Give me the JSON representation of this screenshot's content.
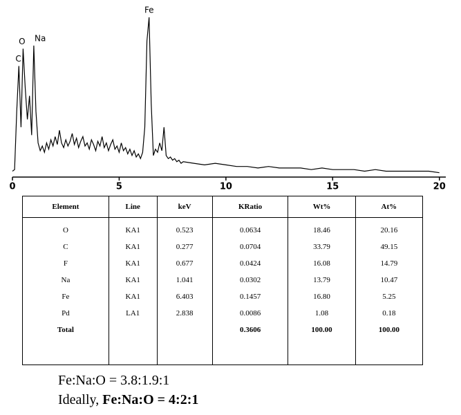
{
  "chart_data": {
    "type": "line",
    "x": [
      0.0,
      0.1,
      0.2,
      0.3,
      0.4,
      0.5,
      0.6,
      0.7,
      0.8,
      0.9,
      1.0,
      1.1,
      1.2,
      1.3,
      1.4,
      1.5,
      1.6,
      1.7,
      1.8,
      1.9,
      2.0,
      2.1,
      2.2,
      2.3,
      2.4,
      2.5,
      2.6,
      2.7,
      2.8,
      2.9,
      3.0,
      3.1,
      3.2,
      3.3,
      3.4,
      3.5,
      3.6,
      3.7,
      3.8,
      3.9,
      4.0,
      4.1,
      4.2,
      4.3,
      4.4,
      4.5,
      4.6,
      4.7,
      4.8,
      4.9,
      5.0,
      5.1,
      5.2,
      5.3,
      5.4,
      5.5,
      5.6,
      5.7,
      5.8,
      5.9,
      6.0,
      6.1,
      6.2,
      6.3,
      6.4,
      6.5,
      6.6,
      6.7,
      6.8,
      6.9,
      7.0,
      7.1,
      7.2,
      7.3,
      7.4,
      7.5,
      7.6,
      7.7,
      7.8,
      7.9,
      8.0,
      8.5,
      9.0,
      9.5,
      10.0,
      10.5,
      11.0,
      11.5,
      12.0,
      12.5,
      13.0,
      13.5,
      14.0,
      14.5,
      15.0,
      15.5,
      16.0,
      16.5,
      17.0,
      17.5,
      18.0,
      18.5,
      19.0,
      19.5,
      20.0
    ],
    "series": [
      {
        "color": "#000000",
        "values": [
          2,
          3,
          40,
          69,
          30,
          80,
          55,
          35,
          50,
          25,
          82,
          40,
          20,
          15,
          18,
          14,
          20,
          16,
          22,
          18,
          24,
          19,
          28,
          20,
          17,
          22,
          18,
          21,
          26,
          19,
          23,
          17,
          21,
          24,
          18,
          20,
          16,
          22,
          19,
          15,
          21,
          18,
          24,
          17,
          20,
          15,
          19,
          22,
          16,
          18,
          14,
          20,
          15,
          17,
          13,
          16,
          12,
          15,
          11,
          13,
          10,
          14,
          30,
          85,
          100,
          45,
          12,
          16,
          14,
          20,
          15,
          30,
          12,
          10,
          11,
          9,
          10,
          8,
          9,
          7,
          8,
          7,
          6,
          7,
          6,
          5,
          5,
          4,
          5,
          4,
          4,
          4,
          3,
          4,
          3,
          3,
          3,
          2,
          3,
          2,
          2,
          2,
          2,
          2,
          1
        ]
      }
    ],
    "xlim": [
      0,
      20.3
    ],
    "ylim": [
      0,
      100
    ],
    "xticks": [
      0,
      5,
      10,
      15,
      20
    ],
    "annotations": [
      {
        "text": "C",
        "x": 0.277,
        "y": 69
      },
      {
        "text": "O",
        "x": 0.45,
        "y": 80
      },
      {
        "text": "Na",
        "x": 1.041,
        "y": 82
      },
      {
        "text": "Fe",
        "x": 6.403,
        "y": 100
      }
    ]
  },
  "table": {
    "header": [
      "Element",
      "Line",
      "keV",
      "KRatio",
      "Wt%",
      "At%"
    ],
    "rows": [
      [
        "O",
        "KA1",
        "0.523",
        "0.0634",
        "18.46",
        "20.16"
      ],
      [
        "C",
        "KA1",
        "0.277",
        "0.0704",
        "33.79",
        "49.15"
      ],
      [
        "F",
        "KA1",
        "0.677",
        "0.0424",
        "16.08",
        "14.79"
      ],
      [
        "Na",
        "KA1",
        "1.041",
        "0.0302",
        "13.79",
        "10.47"
      ],
      [
        "Fe",
        "KA1",
        "6.403",
        "0.1457",
        "16.80",
        "5.25"
      ],
      [
        "Pd",
        "LA1",
        "2.838",
        "0.0086",
        "1.08",
        "0.18"
      ],
      [
        "Total",
        null,
        null,
        "0.3606",
        "100.00",
        "100.00"
      ]
    ]
  },
  "notes": {
    "ratio": "Fe:Na:O = 3.8:1.9:1",
    "ideal_prefix": "Ideally,",
    "ideal": "Fe:Na:O = 4:2:1"
  }
}
